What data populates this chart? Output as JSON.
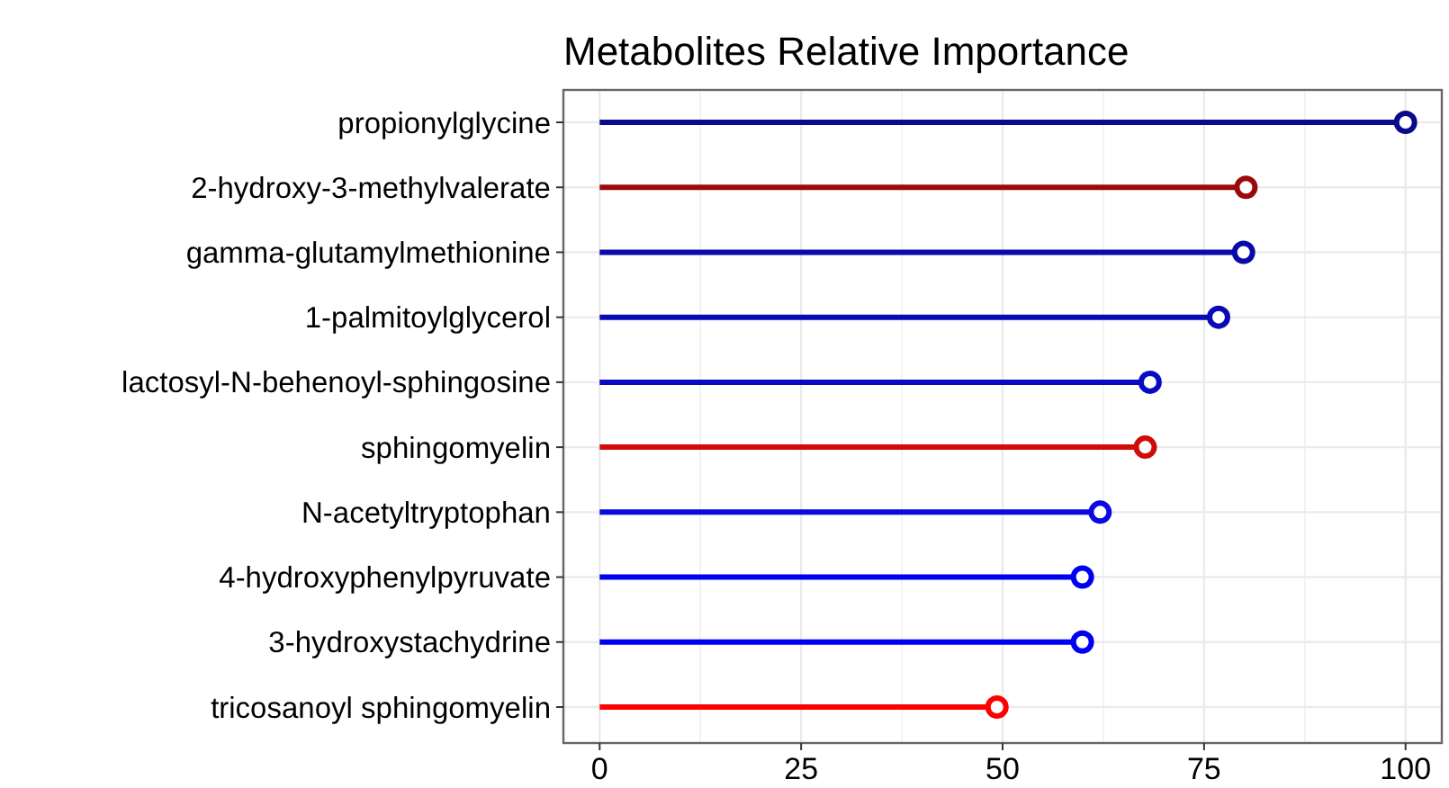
{
  "chart_data": {
    "type": "lollipop",
    "orientation": "horizontal",
    "title": "Metabolites Relative Importance",
    "categories": [
      "propionylglycine",
      "2-hydroxy-3-methylvalerate",
      "gamma-glutamylmethionine",
      "1-palmitoylglycerol",
      "lactosyl-N-behenoyl-sphingosine",
      "sphingomyelin",
      "N-acetyltryptophan",
      "4-hydroxyphenylpyruvate",
      "3-hydroxystachydrine",
      "tricosanoyl sphingomyelin"
    ],
    "values": [
      100,
      80.2,
      79.9,
      76.8,
      68.3,
      67.7,
      62.1,
      59.9,
      59.9,
      49.3
    ],
    "colors": [
      "#0a0a8c",
      "#9b0a0a",
      "#0a0aaa",
      "#0a0ab4",
      "#0a0ac3",
      "#d20a0a",
      "#0a0ae0",
      "#0000f0",
      "#0000f5",
      "#ff0000"
    ],
    "xlim": [
      -4.5,
      104.5
    ],
    "xticks": [
      0,
      25,
      50,
      75,
      100
    ],
    "grid": true,
    "marker": "circle"
  }
}
